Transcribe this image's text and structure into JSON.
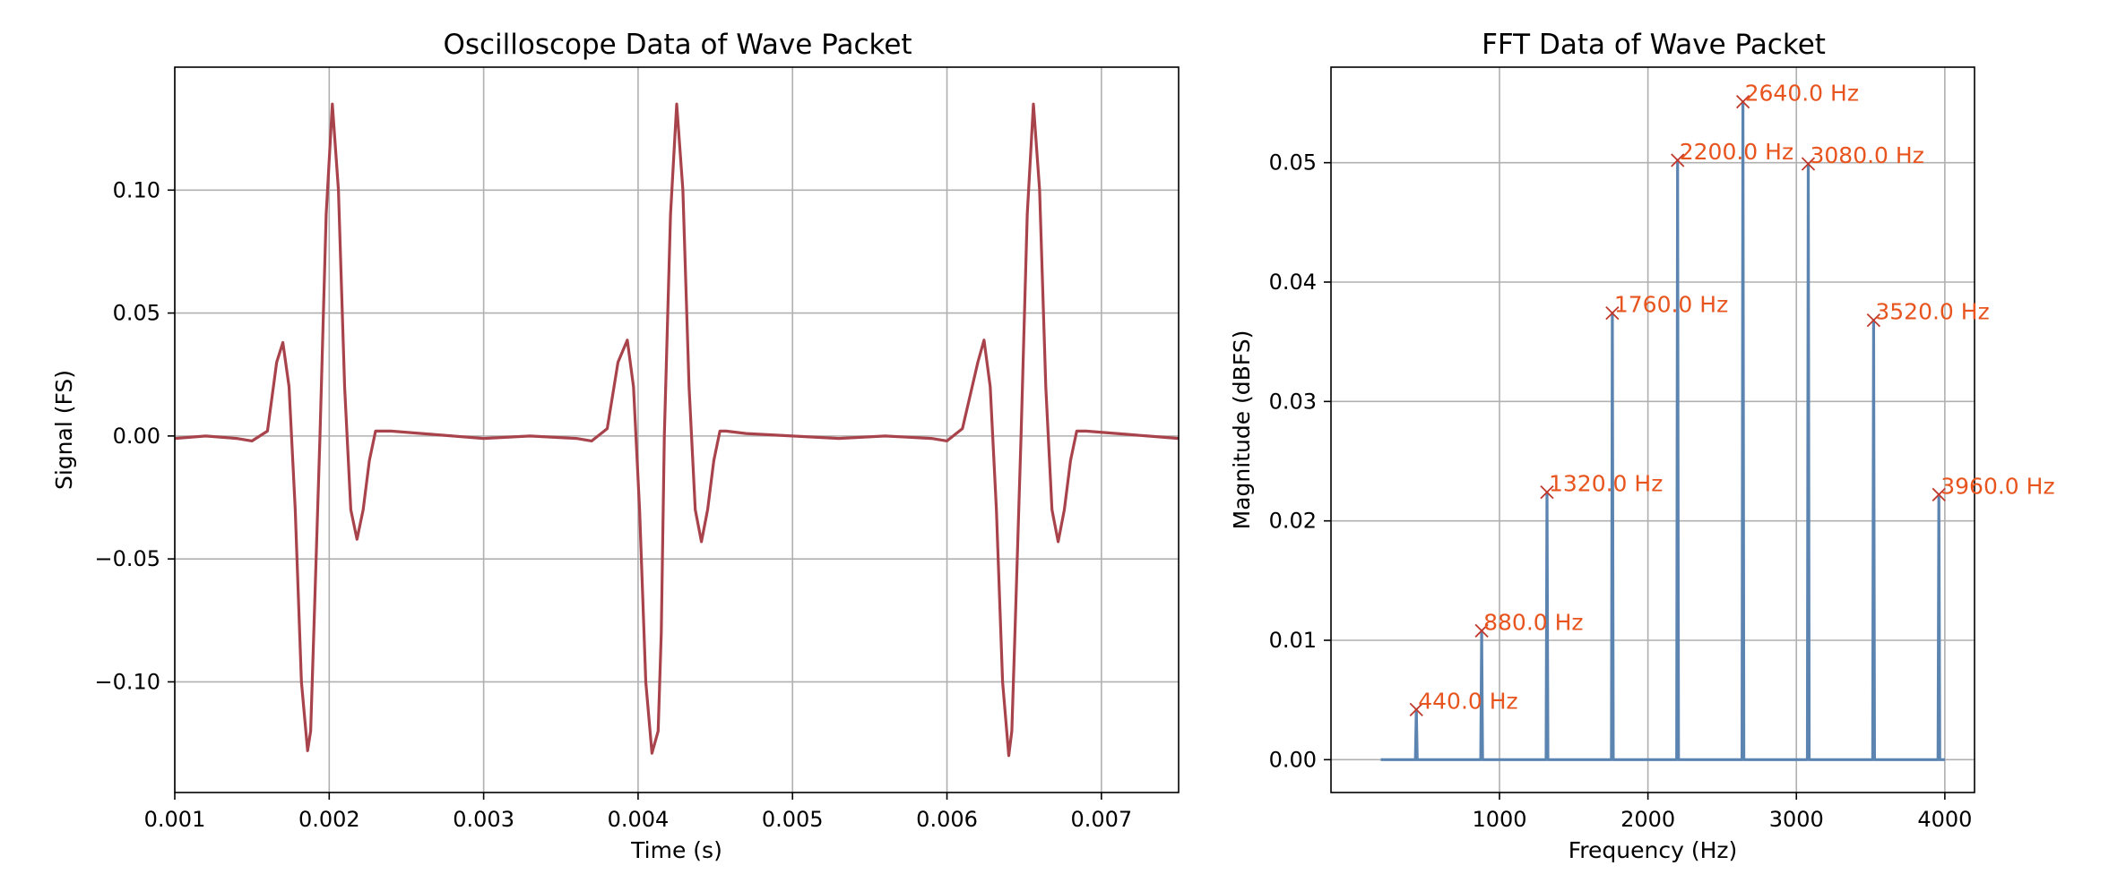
{
  "colors": {
    "signal": "#a8434b",
    "spectrum": "#5b84b1",
    "annotation": "#e8541e",
    "marker": "#c0392b",
    "grid": "#b0b0b0"
  },
  "chart_data": [
    {
      "type": "line",
      "title": "Oscilloscope Data of Wave Packet",
      "xlabel": "Time (s)",
      "ylabel": "Signal (FS)",
      "xlim": [
        0.001,
        0.0075
      ],
      "ylim": [
        -0.145,
        0.15
      ],
      "grid": true,
      "xticks": [
        {
          "value": 0.001,
          "label": "0.001"
        },
        {
          "value": 0.002,
          "label": "0.002"
        },
        {
          "value": 0.003,
          "label": "0.003"
        },
        {
          "value": 0.004,
          "label": "0.004"
        },
        {
          "value": 0.005,
          "label": "0.005"
        },
        {
          "value": 0.006,
          "label": "0.006"
        },
        {
          "value": 0.007,
          "label": "0.007"
        }
      ],
      "yticks": [
        {
          "value": -0.1,
          "label": "−0.10"
        },
        {
          "value": -0.05,
          "label": "−0.05"
        },
        {
          "value": 0.0,
          "label": "0.00"
        },
        {
          "value": 0.05,
          "label": "0.05"
        },
        {
          "value": 0.1,
          "label": "0.10"
        }
      ],
      "packet_centers": [
        0.00187,
        0.00414,
        0.00641
      ],
      "series": [
        {
          "description": "repeating wave packet, period ≈ 0.00227 s",
          "x": [
            0.001,
            0.0012,
            0.0014,
            0.0015,
            0.0016,
            0.00166,
            0.0017,
            0.00174,
            0.00178,
            0.00182,
            0.00186,
            0.00188,
            0.0019,
            0.00194,
            0.00198,
            0.00202,
            0.00206,
            0.0021,
            0.00214,
            0.00218,
            0.00222,
            0.00226,
            0.0023,
            0.0024,
            0.0026,
            0.0028,
            0.003,
            0.0033,
            0.0036,
            0.0037,
            0.0038,
            0.00387,
            0.00393,
            0.00397,
            0.00401,
            0.00405,
            0.00409,
            0.00413,
            0.00415,
            0.00417,
            0.00421,
            0.00425,
            0.00429,
            0.00433,
            0.00437,
            0.00441,
            0.00445,
            0.00449,
            0.00453,
            0.00457,
            0.0047,
            0.005,
            0.0053,
            0.0056,
            0.0059,
            0.006,
            0.0061,
            0.0062,
            0.00624,
            0.00628,
            0.00632,
            0.00636,
            0.0064,
            0.00642,
            0.00644,
            0.00648,
            0.00652,
            0.00656,
            0.0066,
            0.00664,
            0.00668,
            0.00672,
            0.00676,
            0.0068,
            0.00684,
            0.0069,
            0.0071,
            0.0073,
            0.0075
          ],
          "y": [
            -0.001,
            0.0,
            -0.001,
            -0.002,
            0.002,
            0.03,
            0.038,
            0.02,
            -0.03,
            -0.1,
            -0.128,
            -0.12,
            -0.08,
            0.0,
            0.09,
            0.135,
            0.1,
            0.02,
            -0.03,
            -0.042,
            -0.03,
            -0.01,
            0.002,
            0.002,
            0.001,
            0.0,
            -0.001,
            0.0,
            -0.001,
            -0.002,
            0.003,
            0.03,
            0.039,
            0.02,
            -0.03,
            -0.1,
            -0.129,
            -0.12,
            -0.08,
            0.0,
            0.09,
            0.135,
            0.1,
            0.02,
            -0.03,
            -0.043,
            -0.03,
            -0.01,
            0.002,
            0.002,
            0.001,
            0.0,
            -0.001,
            0.0,
            -0.001,
            -0.002,
            0.003,
            0.03,
            0.039,
            0.02,
            -0.03,
            -0.1,
            -0.13,
            -0.12,
            -0.08,
            0.0,
            0.09,
            0.135,
            0.1,
            0.02,
            -0.03,
            -0.043,
            -0.03,
            -0.01,
            0.002,
            0.002,
            0.001,
            0.0,
            -0.001
          ]
        }
      ]
    },
    {
      "type": "line",
      "title": "FFT Data of Wave Packet",
      "xlabel": "Frequency (Hz)",
      "ylabel": "Magnitude (dBFS)",
      "xlim": [
        -135,
        4200
      ],
      "ylim": [
        -0.00275,
        0.058
      ],
      "grid": true,
      "xticks": [
        {
          "value": 1000,
          "label": "1000"
        },
        {
          "value": 2000,
          "label": "2000"
        },
        {
          "value": 3000,
          "label": "3000"
        },
        {
          "value": 4000,
          "label": "4000"
        }
      ],
      "yticks": [
        {
          "value": 0.0,
          "label": "0.00"
        },
        {
          "value": 0.01,
          "label": "0.01"
        },
        {
          "value": 0.02,
          "label": "0.02"
        },
        {
          "value": 0.03,
          "label": "0.03"
        },
        {
          "value": 0.04,
          "label": "0.04"
        },
        {
          "value": 0.05,
          "label": "0.05"
        }
      ],
      "baseline_range": [
        200,
        4000
      ],
      "peaks": [
        {
          "freq": 440,
          "mag": 0.0042,
          "label": "440.0 Hz"
        },
        {
          "freq": 880,
          "mag": 0.0108,
          "label": "880.0 Hz"
        },
        {
          "freq": 1320,
          "mag": 0.0224,
          "label": "1320.0 Hz"
        },
        {
          "freq": 1760,
          "mag": 0.0374,
          "label": "1760.0 Hz"
        },
        {
          "freq": 2200,
          "mag": 0.0502,
          "label": "2200.0 Hz"
        },
        {
          "freq": 2640,
          "mag": 0.0551,
          "label": "2640.0 Hz"
        },
        {
          "freq": 3080,
          "mag": 0.0499,
          "label": "3080.0 Hz"
        },
        {
          "freq": 3520,
          "mag": 0.0368,
          "label": "3520.0 Hz"
        },
        {
          "freq": 3960,
          "mag": 0.0222,
          "label": "3960.0 Hz"
        }
      ]
    }
  ]
}
